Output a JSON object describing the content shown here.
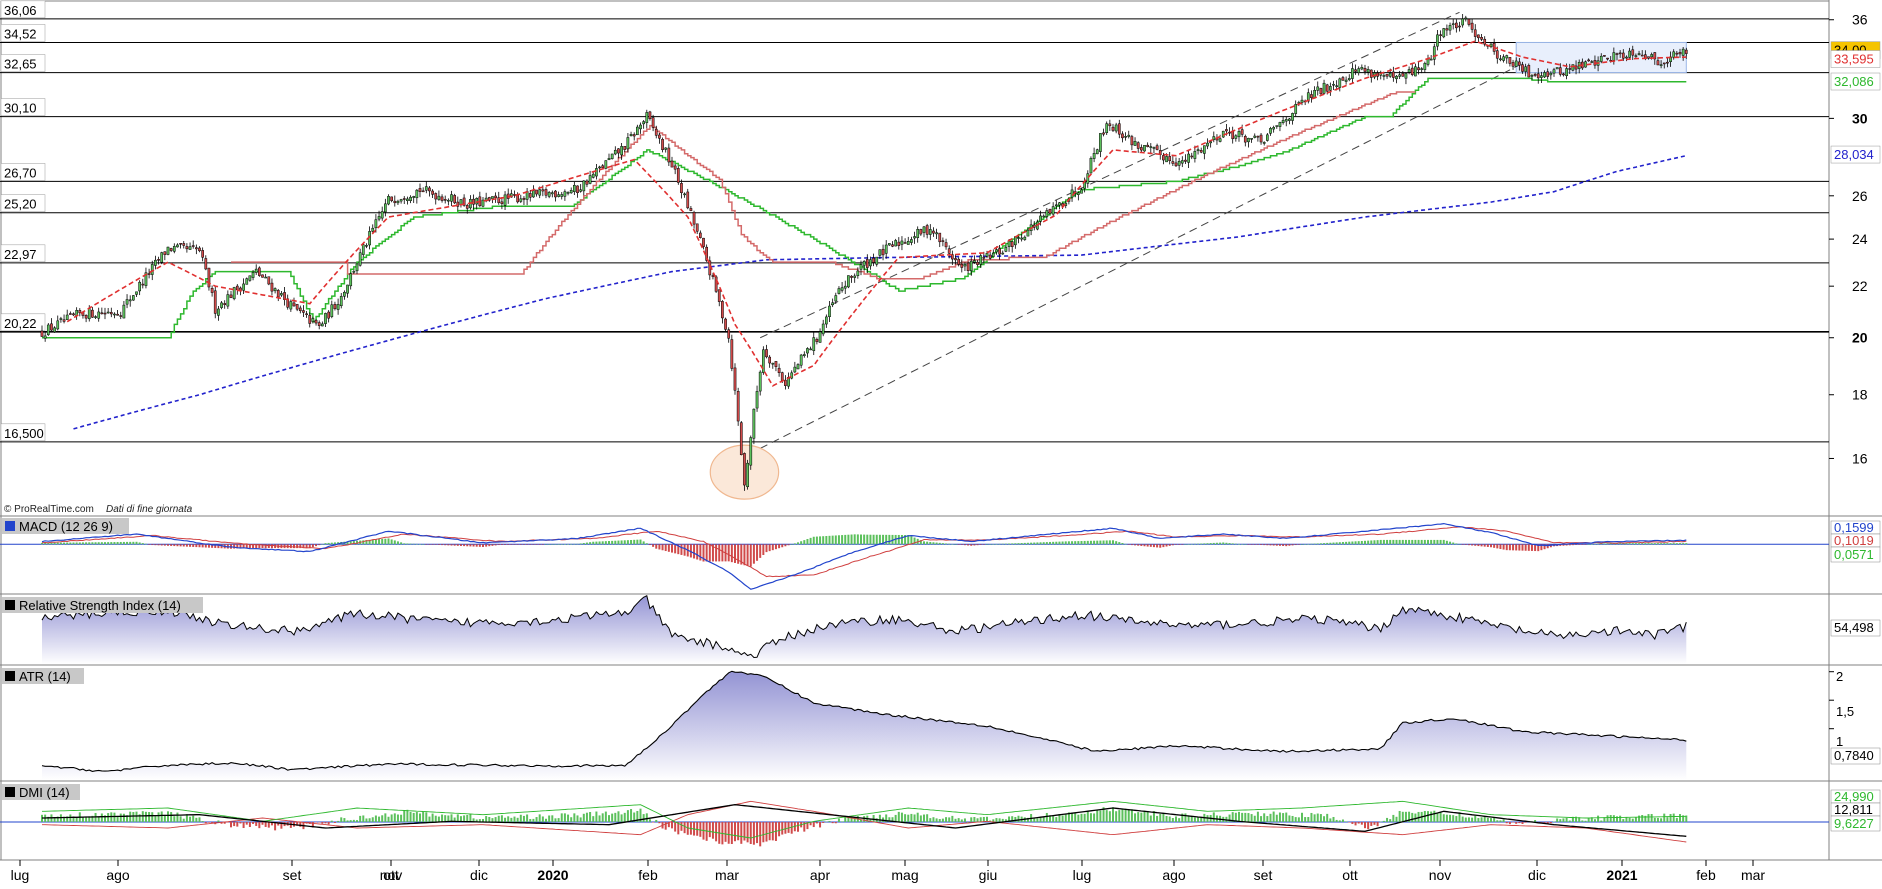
{
  "watermark": "© ProRealTime.com",
  "watermark_note": "Dati di fine giornata",
  "colors": {
    "candle_up": "#5cc05c",
    "candle_down": "#d04a4a",
    "hline": "#000000",
    "channel": "#444444",
    "stop_red": "#d46a6a",
    "stop_green": "#2eb82e",
    "ma_short": "#e03030",
    "ma_long": "#2222cc",
    "panel_fill": "#a3a3d8",
    "macd_line": "#2244cc",
    "signal_line": "#d04040",
    "dmi_plus": "#2eb82e",
    "dmi_minus": "#d04040",
    "adx": "#000000",
    "last_price_bg": "#f5c400",
    "circle": "#f0b890",
    "box": "#9ab6e8"
  },
  "chart_data": [
    {
      "type": "candlestick",
      "name": "price",
      "ylim": [
        14.6,
        37.2
      ],
      "y_ticks": [
        16,
        18,
        20,
        22,
        24,
        26,
        30,
        36
      ],
      "y_ticks_bold": [
        20,
        30
      ],
      "level_labels": [
        "36,06",
        "34,52",
        "32,65",
        "30,10",
        "26,70",
        "25,20",
        "22,97",
        "20,22",
        "16,500"
      ],
      "level_values": [
        36.06,
        34.52,
        32.65,
        30.1,
        26.7,
        25.2,
        22.97,
        20.22,
        16.5
      ],
      "right_labels": {
        "last_price": "34,00",
        "short_ma": "33,595",
        "green_stop": "32,086",
        "long_ma": "28,034"
      },
      "x_axis_months": [
        "lug",
        "ago",
        "set",
        "ott",
        "nov",
        "dic",
        "2020",
        "feb",
        "mar",
        "apr",
        "mag",
        "giu",
        "lug",
        "ago",
        "set",
        "ott",
        "nov",
        "dic",
        "2021",
        "feb",
        "mar"
      ],
      "x_axis_bold": [
        "2020",
        "2021"
      ],
      "price_anchors": [
        [
          0,
          20.2
        ],
        [
          12,
          20.9
        ],
        [
          25,
          21.0
        ],
        [
          40,
          23.6
        ],
        [
          50,
          23.5
        ],
        [
          55,
          21.1
        ],
        [
          68,
          22.6
        ],
        [
          80,
          21.1
        ],
        [
          88,
          20.4
        ],
        [
          95,
          21.6
        ],
        [
          110,
          25.8
        ],
        [
          120,
          26.3
        ],
        [
          135,
          25.6
        ],
        [
          150,
          25.9
        ],
        [
          170,
          26.3
        ],
        [
          185,
          28.5
        ],
        [
          192,
          30.1
        ],
        [
          200,
          27.5
        ],
        [
          210,
          23.5
        ],
        [
          218,
          20.0
        ],
        [
          223,
          15.2
        ],
        [
          229,
          19.6
        ],
        [
          236,
          18.4
        ],
        [
          246,
          20.0
        ],
        [
          253,
          21.8
        ],
        [
          260,
          22.8
        ],
        [
          270,
          23.7
        ],
        [
          282,
          24.5
        ],
        [
          292,
          22.7
        ],
        [
          305,
          23.5
        ],
        [
          320,
          25.2
        ],
        [
          330,
          26.5
        ],
        [
          338,
          29.8
        ],
        [
          348,
          28.5
        ],
        [
          362,
          27.6
        ],
        [
          375,
          29.3
        ],
        [
          387,
          28.7
        ],
        [
          402,
          31.2
        ],
        [
          418,
          32.9
        ],
        [
          430,
          32.2
        ],
        [
          440,
          33.2
        ],
        [
          444,
          35.3
        ],
        [
          452,
          35.8
        ],
        [
          462,
          33.8
        ],
        [
          472,
          32.6
        ],
        [
          482,
          32.7
        ],
        [
          497,
          33.6
        ],
        [
          507,
          34.0
        ],
        [
          513,
          33.3
        ],
        [
          522,
          34.0
        ]
      ],
      "green_stop_anchors": [
        [
          0,
          20.0
        ],
        [
          40,
          20.0
        ],
        [
          48,
          21.8
        ],
        [
          55,
          22.6
        ],
        [
          78,
          22.6
        ],
        [
          86,
          20.6
        ],
        [
          100,
          23.0
        ],
        [
          118,
          25.0
        ],
        [
          145,
          25.5
        ],
        [
          168,
          25.5
        ],
        [
          185,
          27.4
        ],
        [
          192,
          28.3
        ],
        [
          272,
          21.8
        ],
        [
          276,
          21.9
        ],
        [
          292,
          22.3
        ],
        [
          330,
          26.3
        ],
        [
          360,
          26.7
        ],
        [
          378,
          27.4
        ],
        [
          395,
          28.2
        ],
        [
          420,
          30.1
        ],
        [
          428,
          30.1
        ],
        [
          440,
          32.3
        ],
        [
          470,
          32.3
        ],
        [
          480,
          32.1
        ],
        [
          522,
          32.1
        ]
      ],
      "red_stop_anchors": [
        [
          60,
          23.0
        ],
        [
          96,
          23.0
        ],
        [
          96,
          22.5
        ],
        [
          152,
          22.5
        ],
        [
          193,
          29.6
        ],
        [
          205,
          28.0
        ],
        [
          215,
          26.8
        ],
        [
          222,
          24.2
        ],
        [
          228,
          23.4
        ],
        [
          232,
          23.0
        ],
        [
          250,
          23.0
        ],
        [
          266,
          22.3
        ],
        [
          278,
          22.3
        ],
        [
          295,
          23.1
        ],
        [
          318,
          23.2
        ],
        [
          430,
          31.5
        ],
        [
          436,
          31.5
        ]
      ],
      "ma_short_anchors": [
        [
          8,
          20.6
        ],
        [
          40,
          23.0
        ],
        [
          55,
          22.0
        ],
        [
          85,
          21.3
        ],
        [
          110,
          25.0
        ],
        [
          150,
          26.0
        ],
        [
          188,
          27.8
        ],
        [
          205,
          25.0
        ],
        [
          220,
          20.5
        ],
        [
          232,
          18.3
        ],
        [
          245,
          19.0
        ],
        [
          258,
          21.0
        ],
        [
          272,
          23.2
        ],
        [
          300,
          23.4
        ],
        [
          322,
          25.1
        ],
        [
          340,
          28.3
        ],
        [
          360,
          28.0
        ],
        [
          385,
          29.8
        ],
        [
          420,
          32.3
        ],
        [
          440,
          33.5
        ],
        [
          455,
          34.6
        ],
        [
          470,
          33.6
        ],
        [
          485,
          33.0
        ],
        [
          505,
          33.5
        ],
        [
          522,
          33.6
        ]
      ],
      "ma_long_anchors": [
        [
          10,
          16.9
        ],
        [
          50,
          18.0
        ],
        [
          110,
          19.9
        ],
        [
          160,
          21.5
        ],
        [
          200,
          22.6
        ],
        [
          230,
          23.1
        ],
        [
          270,
          23.2
        ],
        [
          330,
          23.3
        ],
        [
          380,
          24.1
        ],
        [
          420,
          25.0
        ],
        [
          460,
          25.7
        ],
        [
          480,
          26.2
        ],
        [
          500,
          27.2
        ],
        [
          522,
          28.0
        ]
      ],
      "channel": {
        "upper": [
          [
            228,
            20.0
          ],
          [
            450,
            36.5
          ]
        ],
        "lower": [
          [
            228,
            16.3
          ],
          [
            470,
            33.2
          ]
        ]
      },
      "circle": {
        "center_index": 223,
        "center_value": 15.6,
        "r_bars": 7
      },
      "box": {
        "from": 468,
        "to": 522,
        "lo": 32.65,
        "hi": 34.52
      }
    },
    {
      "type": "line",
      "name": "MACD",
      "label": "MACD (12 26 9)",
      "right_labels": [
        "0,1599",
        "0,1019",
        "0,0571"
      ],
      "ylim": [
        -1.7,
        0.9
      ]
    },
    {
      "type": "area",
      "name": "RSI",
      "label": "Relative Strength Index (14)",
      "right_labels": [
        "54,498"
      ],
      "ylim": [
        18,
        85
      ]
    },
    {
      "type": "area",
      "name": "ATR",
      "label": "ATR (14)",
      "y_ticks": [
        "2",
        "1,5",
        "1"
      ],
      "y_tick_values": [
        2,
        1.5,
        1
      ],
      "right_labels": [
        "0,7840"
      ],
      "ylim": [
        0.1,
        2.1
      ],
      "atr_anchors": [
        [
          0,
          0.35
        ],
        [
          20,
          0.25
        ],
        [
          40,
          0.36
        ],
        [
          60,
          0.4
        ],
        [
          80,
          0.28
        ],
        [
          110,
          0.38
        ],
        [
          160,
          0.35
        ],
        [
          185,
          0.35
        ],
        [
          195,
          0.8
        ],
        [
          210,
          1.6
        ],
        [
          219,
          2.02
        ],
        [
          230,
          1.9
        ],
        [
          245,
          1.45
        ],
        [
          268,
          1.25
        ],
        [
          300,
          1.05
        ],
        [
          335,
          0.6
        ],
        [
          360,
          0.7
        ],
        [
          395,
          0.6
        ],
        [
          425,
          0.65
        ],
        [
          432,
          1.1
        ],
        [
          448,
          1.18
        ],
        [
          470,
          0.95
        ],
        [
          522,
          0.8
        ]
      ]
    },
    {
      "type": "bar",
      "name": "DMI",
      "label": "DMI (14)",
      "right_labels": [
        "24,990",
        "12,811",
        "9,6227"
      ]
    }
  ]
}
